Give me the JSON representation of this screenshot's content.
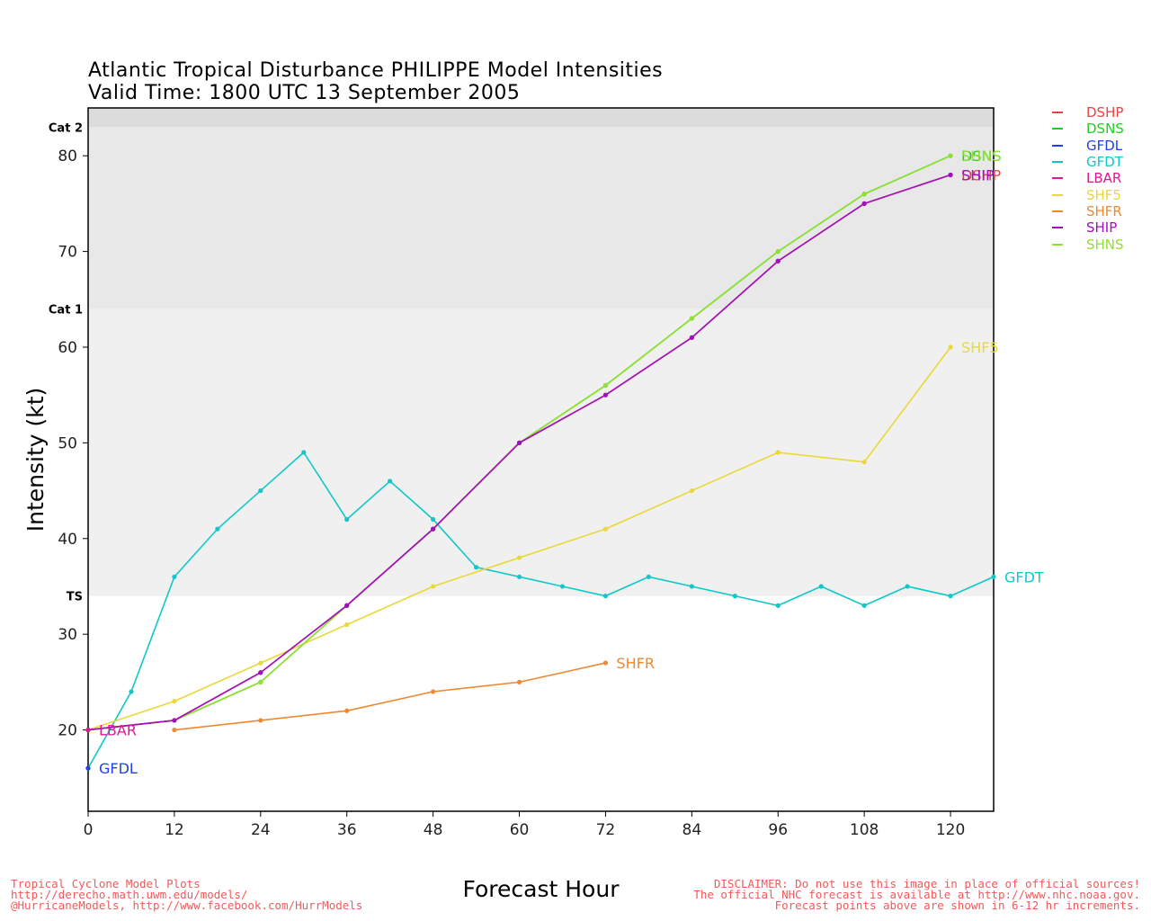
{
  "header": {
    "title": "Atlantic Tropical Disturbance PHILIPPE Model Intensities",
    "subtitle": "Valid Time: 1800 UTC 13 September 2005"
  },
  "footer": {
    "left": [
      "Tropical Cyclone Model Plots",
      "http://derecho.math.uwm.edu/models/",
      "@HurricaneModels, http://www.facebook.com/HurrModels"
    ],
    "right": [
      "DISCLAIMER: Do not use this image in place of official sources!",
      "The official NHC forecast is available at http://www.nhc.noaa.gov.",
      "Forecast points above are shown in 6-12 hr increments."
    ]
  },
  "chart_data": {
    "type": "line",
    "title": "Atlantic Tropical Disturbance PHILIPPE Model Intensities",
    "subtitle": "Valid Time: 1800 UTC 13 September 2005",
    "xlabel": "Forecast Hour",
    "ylabel": "Intensity (kt)",
    "xlim": [
      0,
      126
    ],
    "ylim": [
      11.5,
      85
    ],
    "x_ticks": [
      0,
      12,
      24,
      36,
      48,
      60,
      72,
      84,
      96,
      108,
      120
    ],
    "y_ticks": [
      20,
      30,
      40,
      50,
      60,
      70,
      80
    ],
    "legend_position": "right",
    "categories_bands": [
      {
        "label": "TS",
        "from": 34,
        "to": 64,
        "color": "#f0f0f0"
      },
      {
        "label": "Cat 1",
        "from": 64,
        "to": 83,
        "color": "#e8e8e8"
      },
      {
        "label": "Cat 2",
        "from": 83,
        "to": 85,
        "color": "#dcdcdc"
      }
    ],
    "series": [
      {
        "name": "DSHP",
        "color": "#f04040",
        "x": [
          0,
          12,
          24,
          36,
          48,
          60,
          72,
          84,
          96,
          108,
          120
        ],
        "y": [
          20,
          21,
          26,
          33,
          41,
          50,
          55,
          61,
          69,
          75,
          78
        ]
      },
      {
        "name": "DSNS",
        "color": "#20d020",
        "x": [
          0,
          12,
          24,
          36,
          48,
          60,
          72,
          84,
          96,
          108,
          120
        ],
        "y": [
          20,
          21,
          25,
          33,
          41,
          50,
          56,
          63,
          70,
          76,
          80
        ]
      },
      {
        "name": "GFDL",
        "color": "#2040f0",
        "x": [
          0
        ],
        "y": [
          16
        ]
      },
      {
        "name": "GFDT",
        "color": "#10c8c8",
        "x": [
          0,
          6,
          12,
          18,
          24,
          30,
          36,
          42,
          48,
          54,
          60,
          66,
          72,
          78,
          84,
          90,
          96,
          102,
          108,
          114,
          120,
          126
        ],
        "y": [
          16,
          24,
          36,
          41,
          45,
          49,
          42,
          46,
          42,
          37,
          36,
          35,
          34,
          36,
          35,
          34,
          33,
          35,
          33,
          35,
          34,
          36
        ]
      },
      {
        "name": "LBAR",
        "color": "#e01890",
        "x": [
          0
        ],
        "y": [
          20
        ]
      },
      {
        "name": "SHF5",
        "color": "#e8d838",
        "x": [
          0,
          12,
          24,
          36,
          48,
          60,
          72,
          84,
          96,
          108,
          120
        ],
        "y": [
          20,
          23,
          27,
          31,
          35,
          38,
          41,
          45,
          49,
          48,
          60
        ]
      },
      {
        "name": "SHFR",
        "color": "#f08830",
        "x": [
          12,
          24,
          36,
          48,
          60,
          72
        ],
        "y": [
          20,
          21,
          22,
          24,
          25,
          27
        ]
      },
      {
        "name": "SHIP",
        "color": "#a010c0",
        "x": [
          0,
          12,
          24,
          36,
          48,
          60,
          72,
          84,
          96,
          108,
          120
        ],
        "y": [
          20,
          21,
          26,
          33,
          41,
          50,
          55,
          61,
          69,
          75,
          78
        ]
      },
      {
        "name": "SHNS",
        "color": "#90e030",
        "x": [
          0,
          12,
          24,
          36,
          48,
          60,
          72,
          84,
          96,
          108,
          120
        ],
        "y": [
          20,
          21,
          25,
          33,
          41,
          50,
          56,
          63,
          70,
          76,
          80
        ]
      }
    ]
  }
}
